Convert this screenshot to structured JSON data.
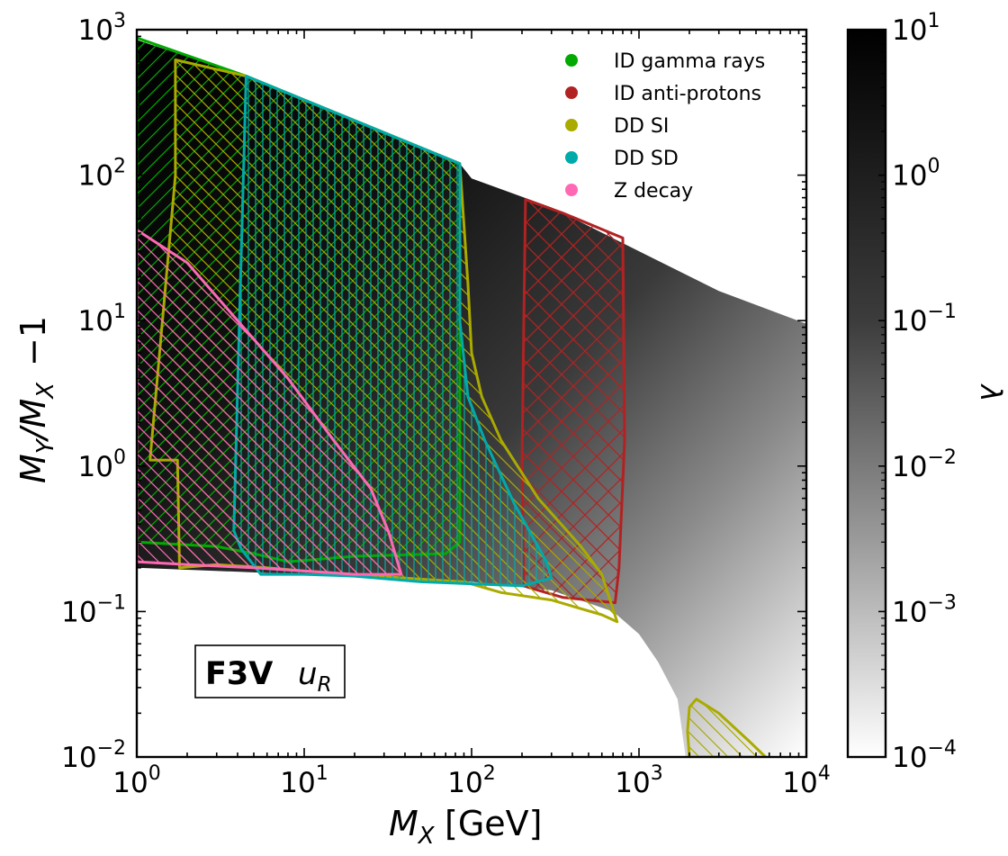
{
  "chart_data": {
    "type": "scatter",
    "panel_label": "F3V",
    "panel_label_sub": "u_R",
    "xlabel": "M_X [GeV]",
    "ylabel": "M_Y/M_X − 1",
    "xscale": "log",
    "yscale": "log",
    "xlim": [
      1,
      10000
    ],
    "ylim": [
      0.01,
      1000
    ],
    "x_ticks": [
      {
        "base": "10",
        "exp": "0"
      },
      {
        "base": "10",
        "exp": "1"
      },
      {
        "base": "10",
        "exp": "2"
      },
      {
        "base": "10",
        "exp": "3"
      },
      {
        "base": "10",
        "exp": "4"
      }
    ],
    "y_ticks": [
      {
        "base": "10",
        "exp": "−2"
      },
      {
        "base": "10",
        "exp": "−1"
      },
      {
        "base": "10",
        "exp": "0"
      },
      {
        "base": "10",
        "exp": "1"
      },
      {
        "base": "10",
        "exp": "2"
      },
      {
        "base": "10",
        "exp": "3"
      }
    ],
    "colorbar": {
      "label": "λ",
      "scale": "log",
      "range": [
        0.0001,
        10
      ],
      "ticks": [
        {
          "base": "10",
          "exp": "1"
        },
        {
          "base": "10",
          "exp": "0"
        },
        {
          "base": "10",
          "exp": "−1"
        },
        {
          "base": "10",
          "exp": "−2"
        },
        {
          "base": "10",
          "exp": "−3"
        },
        {
          "base": "10",
          "exp": "−4"
        }
      ]
    },
    "legend": [
      {
        "label": "ID gamma rays",
        "color": "#00aa00"
      },
      {
        "label": "ID anti-protons",
        "color": "#b22222"
      },
      {
        "label": "DD SI",
        "color": "#aaaa00"
      },
      {
        "label": "DD SD",
        "color": "#00aaaa"
      },
      {
        "label": "Z decay",
        "color": "#ff69b4"
      }
    ],
    "allowed_region": {
      "upper_edge": [
        [
          1,
          850
        ],
        [
          4.5,
          480
        ],
        [
          85,
          120
        ],
        [
          100,
          95
        ],
        [
          300,
          60
        ],
        [
          1000,
          30
        ],
        [
          3000,
          16
        ],
        [
          10000,
          9.5
        ]
      ],
      "lower_edge": [
        [
          1,
          0.2
        ],
        [
          10,
          0.18
        ],
        [
          100,
          0.16
        ],
        [
          300,
          0.14
        ],
        [
          700,
          0.1
        ],
        [
          1000,
          0.07
        ],
        [
          1300,
          0.045
        ],
        [
          1700,
          0.025
        ],
        [
          1900,
          0.01
        ]
      ]
    },
    "regions": [
      {
        "name": "ID gamma rays",
        "color": "#00aa00",
        "hatch": "diagonal",
        "polygon": [
          [
            1,
            880
          ],
          [
            4.5,
            480
          ],
          [
            85,
            120
          ],
          [
            85,
            0.3
          ],
          [
            70,
            0.25
          ],
          [
            20,
            0.24
          ],
          [
            8,
            0.22
          ],
          [
            5,
            0.25
          ],
          [
            3,
            0.28
          ],
          [
            1,
            0.3
          ]
        ]
      },
      {
        "name": "ID anti-protons",
        "color": "#b22222",
        "hatch": "cross",
        "polygon": [
          [
            210,
            68
          ],
          [
            350,
            55
          ],
          [
            800,
            37
          ],
          [
            820,
            1.5
          ],
          [
            760,
            0.2
          ],
          [
            720,
            0.115
          ],
          [
            500,
            0.12
          ],
          [
            350,
            0.125
          ],
          [
            250,
            0.14
          ],
          [
            205,
            0.15
          ],
          [
            200,
            1
          ],
          [
            205,
            10
          ]
        ]
      },
      {
        "name": "DD SI",
        "color": "#aaaa00",
        "hatch": "diagonal-back",
        "polygon": [
          [
            1.7,
            620
          ],
          [
            4.5,
            480
          ],
          [
            85,
            120
          ],
          [
            95,
            18
          ],
          [
            100,
            6
          ],
          [
            115,
            3
          ],
          [
            150,
            1.5
          ],
          [
            250,
            0.6
          ],
          [
            450,
            0.28
          ],
          [
            600,
            0.18
          ],
          [
            740,
            0.085
          ],
          [
            600,
            0.095
          ],
          [
            300,
            0.12
          ],
          [
            150,
            0.135
          ],
          [
            90,
            0.16
          ],
          [
            40,
            0.17
          ],
          [
            20,
            0.18
          ],
          [
            10,
            0.19
          ],
          [
            6,
            0.2
          ],
          [
            3,
            0.21
          ],
          [
            1.8,
            0.2
          ],
          [
            1.75,
            1.1
          ],
          [
            1.2,
            1.1
          ],
          [
            1.7,
            100
          ]
        ]
      },
      {
        "name": "DD SD",
        "color": "#00aaaa",
        "hatch": "vertical",
        "polygon": [
          [
            4.5,
            480
          ],
          [
            85,
            120
          ],
          [
            85,
            10
          ],
          [
            95,
            3
          ],
          [
            120,
            1.5
          ],
          [
            180,
            0.55
          ],
          [
            280,
            0.22
          ],
          [
            300,
            0.17
          ],
          [
            200,
            0.15
          ],
          [
            100,
            0.155
          ],
          [
            50,
            0.16
          ],
          [
            20,
            0.175
          ],
          [
            10,
            0.18
          ],
          [
            5.5,
            0.18
          ],
          [
            4.2,
            0.27
          ],
          [
            3.8,
            0.36
          ],
          [
            4.1,
            10
          ]
        ]
      },
      {
        "name": "Z decay",
        "color": "#ff69b4",
        "hatch": "diagonal-back",
        "polygon": [
          [
            1,
            42
          ],
          [
            2,
            25
          ],
          [
            4,
            10
          ],
          [
            8,
            4
          ],
          [
            15,
            1.5
          ],
          [
            25,
            0.7
          ],
          [
            32,
            0.35
          ],
          [
            38,
            0.18
          ],
          [
            30,
            0.18
          ],
          [
            20,
            0.18
          ],
          [
            10,
            0.19
          ],
          [
            5,
            0.2
          ],
          [
            2,
            0.21
          ],
          [
            1,
            0.22
          ]
        ]
      },
      {
        "name": "DD SI (high mass)",
        "color": "#aaaa00",
        "hatch": "diagonal-back",
        "polygon": [
          [
            2000,
            0.022
          ],
          [
            2200,
            0.025
          ],
          [
            3000,
            0.02
          ],
          [
            4500,
            0.013
          ],
          [
            5700,
            0.01
          ],
          [
            4000,
            0.01
          ],
          [
            2000,
            0.01
          ],
          [
            1950,
            0.015
          ]
        ]
      }
    ]
  }
}
